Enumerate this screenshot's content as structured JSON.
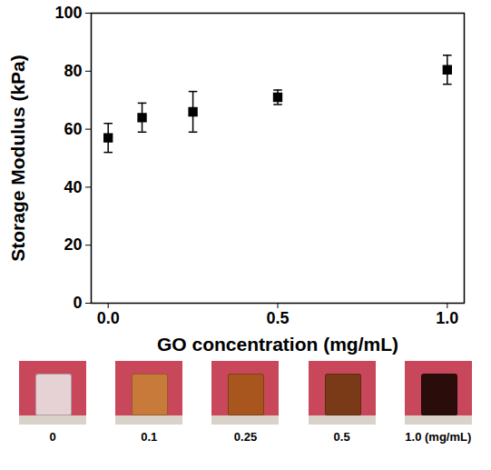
{
  "chart_data": {
    "type": "scatter",
    "x_label": "GO concentration (mg/mL)",
    "y_label": "Storage Modulus (kPa)",
    "x": [
      0,
      0.1,
      0.25,
      0.5,
      1.0
    ],
    "values": [
      57,
      64,
      66,
      71,
      80.5
    ],
    "errors": [
      5,
      5,
      7,
      2.5,
      5
    ],
    "color": "#000000",
    "marker": "square",
    "xlim": [
      -0.05,
      1.05
    ],
    "xticks": [
      {
        "value": 0,
        "label": "0.0"
      },
      {
        "value": 0.5,
        "label": "0.5"
      },
      {
        "value": 1.0,
        "label": "1.0"
      }
    ],
    "ylim": [
      0,
      100
    ],
    "yticks": [
      0,
      20,
      40,
      60,
      80,
      100
    ],
    "grid": false,
    "photo_labels": [
      "0",
      "0.1",
      "0.25",
      "0.5",
      "1.0 (mg/mL)"
    ]
  }
}
